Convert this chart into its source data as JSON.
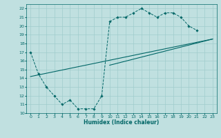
{
  "title": "",
  "xlabel": "Humidex (Indice chaleur)",
  "bg_color": "#c0e0e0",
  "grid_color": "#a0cccc",
  "line_color": "#006666",
  "xlim": [
    -0.5,
    23.5
  ],
  "ylim": [
    10,
    22.5
  ],
  "yticks": [
    10,
    11,
    12,
    13,
    14,
    15,
    16,
    17,
    18,
    19,
    20,
    21,
    22
  ],
  "xticks": [
    0,
    1,
    2,
    3,
    4,
    5,
    6,
    7,
    8,
    9,
    10,
    11,
    12,
    13,
    14,
    15,
    16,
    17,
    18,
    19,
    20,
    21,
    22,
    23
  ],
  "series1_x": [
    0,
    1,
    2,
    3,
    4,
    5,
    6,
    7,
    8,
    9,
    10,
    11,
    12,
    13,
    14,
    15,
    16,
    17,
    18,
    19,
    20,
    21
  ],
  "series1_y": [
    17.0,
    14.5,
    13.0,
    12.0,
    11.0,
    11.5,
    10.5,
    10.5,
    10.5,
    12.0,
    20.5,
    21.0,
    21.0,
    21.5,
    22.0,
    21.5,
    21.0,
    21.5,
    21.5,
    21.0,
    20.0,
    19.5
  ],
  "series2_x": [
    0,
    23
  ],
  "series2_y": [
    14.2,
    18.5
  ],
  "series3_x": [
    10,
    23
  ],
  "series3_y": [
    15.5,
    18.5
  ]
}
